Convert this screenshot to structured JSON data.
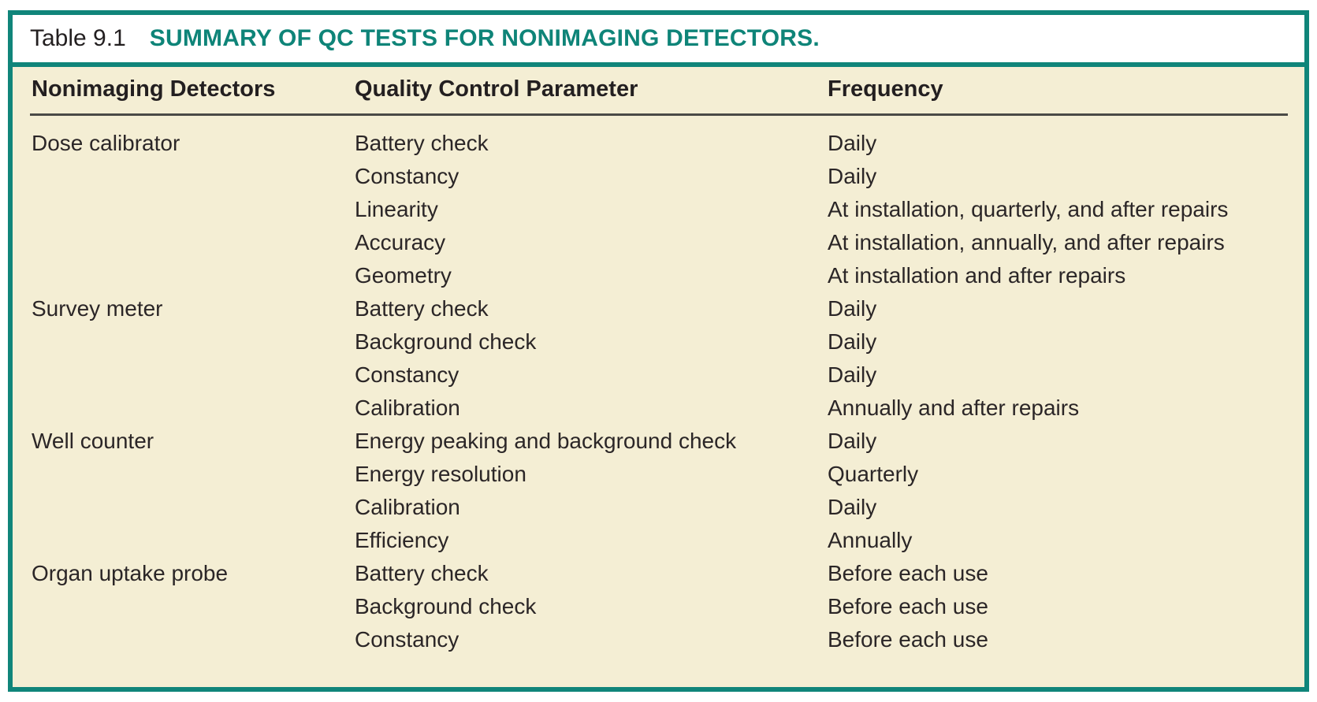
{
  "title": {
    "prefix": "Table 9.1",
    "main": "SUMMARY OF QC TESTS FOR NONIMAGING DETECTORS."
  },
  "columns": [
    "Nonimaging Detectors",
    "Quality Control Parameter",
    "Frequency"
  ],
  "groups": [
    {
      "detector": "Dose calibrator",
      "tests": [
        {
          "parameter": "Battery check",
          "frequency": "Daily"
        },
        {
          "parameter": "Constancy",
          "frequency": "Daily"
        },
        {
          "parameter": "Linearity",
          "frequency": "At installation, quarterly, and after repairs"
        },
        {
          "parameter": "Accuracy",
          "frequency": "At installation, annually, and after repairs"
        },
        {
          "parameter": "Geometry",
          "frequency": "At installation and after repairs"
        }
      ]
    },
    {
      "detector": "Survey meter",
      "tests": [
        {
          "parameter": "Battery check",
          "frequency": "Daily"
        },
        {
          "parameter": "Background check",
          "frequency": "Daily"
        },
        {
          "parameter": "Constancy",
          "frequency": "Daily"
        },
        {
          "parameter": "Calibration",
          "frequency": "Annually and after repairs"
        }
      ]
    },
    {
      "detector": "Well counter",
      "tests": [
        {
          "parameter": "Energy peaking and background check",
          "frequency": "Daily"
        },
        {
          "parameter": "Energy resolution",
          "frequency": "Quarterly"
        },
        {
          "parameter": "Calibration",
          "frequency": "Daily"
        },
        {
          "parameter": "Efficiency",
          "frequency": "Annually"
        }
      ]
    },
    {
      "detector": "Organ uptake probe",
      "tests": [
        {
          "parameter": "Battery check",
          "frequency": "Before each use"
        },
        {
          "parameter": "Background check",
          "frequency": "Before each use"
        },
        {
          "parameter": "Constancy",
          "frequency": "Before each use"
        }
      ]
    }
  ],
  "colors": {
    "frame_teal": "#10857A",
    "title_teal": "#0E8478",
    "body_cream": "#F4EED4",
    "text_ink": "#231F20"
  }
}
